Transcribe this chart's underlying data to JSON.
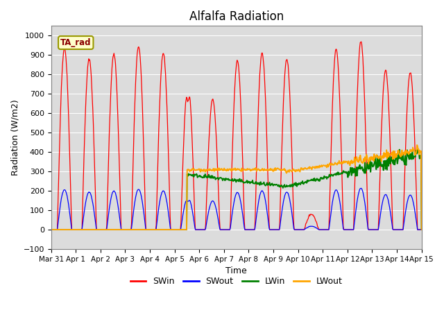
{
  "title": "Alfalfa Radiation",
  "ylabel": "Radiation (W/m2)",
  "xlabel": "Time",
  "ylim": [
    -100,
    1050
  ],
  "xlim": [
    0,
    15
  ],
  "xtick_labels": [
    "Mar 31",
    "Apr 1",
    "Apr 2",
    "Apr 3",
    "Apr 4",
    "Apr 5",
    "Apr 6",
    "Apr 7",
    "Apr 8",
    "Apr 9",
    "Apr 10",
    "Apr 11",
    "Apr 12",
    "Apr 13",
    "Apr 14",
    "Apr 15"
  ],
  "legend_label": "TA_rad",
  "series_labels": [
    "SWin",
    "SWout",
    "LWin",
    "LWout"
  ],
  "series_colors": [
    "red",
    "blue",
    "green",
    "orange"
  ],
  "background_color": "#dcdcdc",
  "title_fontsize": 12,
  "label_fontsize": 9
}
